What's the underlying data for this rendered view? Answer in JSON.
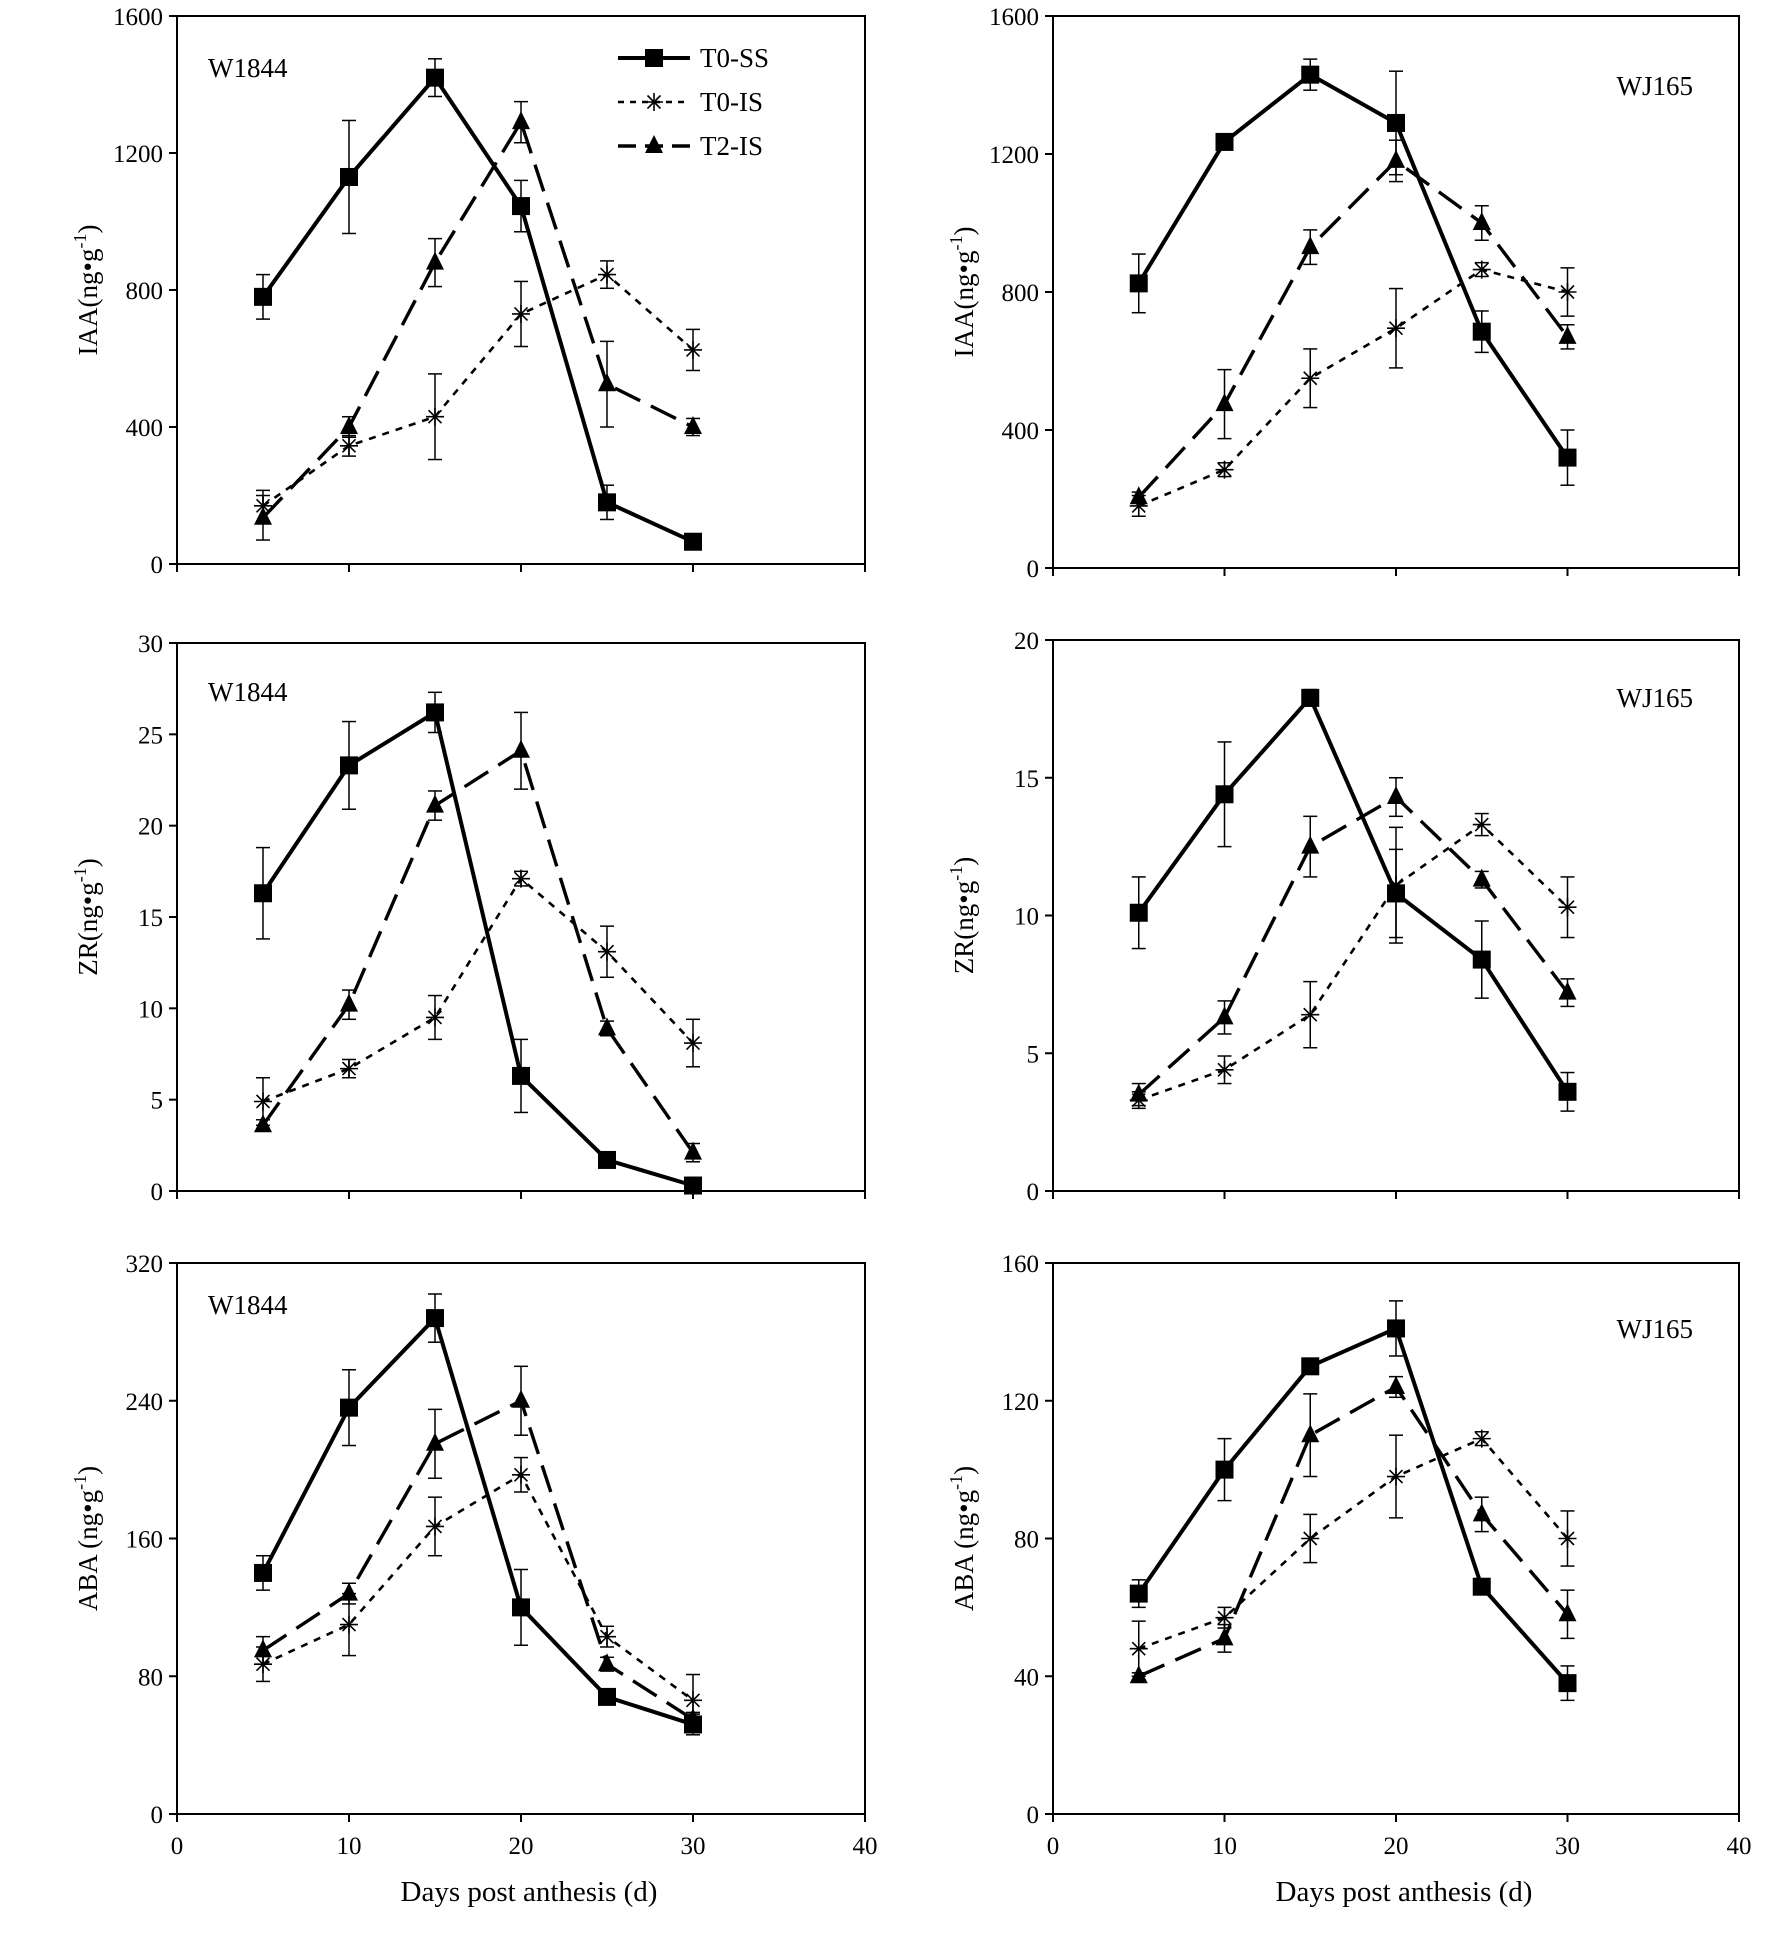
{
  "figure": {
    "x_label": "Days post anthesis (d)",
    "legend": [
      "T0-SS",
      "T0-IS",
      "T2-IS"
    ]
  },
  "chart_data": [
    {
      "type": "line",
      "title": "W1844",
      "ylabel": "IAA(ng•g⁻¹)",
      "ylabel_main": "IAA(ng•g",
      "ylabel_sup": "-1",
      "ylabel_end": ")",
      "xlabel": "Days post anthesis (d)",
      "xlim": [
        0,
        40
      ],
      "ylim": [
        0,
        1600
      ],
      "x_ticks": [
        "0",
        "10",
        "20",
        "30",
        "40"
      ],
      "y_ticks": [
        "0",
        "400",
        "800",
        "1200",
        "1600"
      ],
      "x": [
        5,
        10,
        15,
        20,
        25,
        30
      ],
      "series": [
        {
          "name": "T0-SS",
          "values": [
            780,
            1130,
            1420,
            1045,
            180,
            65
          ],
          "errors": [
            65,
            165,
            55,
            75,
            50,
            15
          ]
        },
        {
          "name": "T0-IS",
          "values": [
            170,
            345,
            430,
            730,
            845,
            625
          ],
          "errors": [
            45,
            30,
            125,
            95,
            40,
            60
          ]
        },
        {
          "name": "T2-IS",
          "values": [
            135,
            400,
            880,
            1290,
            525,
            400
          ],
          "errors": [
            65,
            30,
            70,
            60,
            125,
            25
          ]
        }
      ]
    },
    {
      "type": "line",
      "title": "WJ165",
      "ylabel": "IAA(ng•g⁻¹)",
      "ylabel_main": "IAA(ng•g",
      "ylabel_sup": "-1",
      "ylabel_end": ")",
      "xlabel": "Days post anthesis (d)",
      "xlim": [
        0,
        40
      ],
      "ylim": [
        0,
        1600
      ],
      "x_ticks": [
        "0",
        "10",
        "20",
        "30",
        "40"
      ],
      "y_ticks": [
        "0",
        "400",
        "800",
        "1200",
        "1600"
      ],
      "x": [
        5,
        10,
        15,
        20,
        25,
        30
      ],
      "series": [
        {
          "name": "T0-SS",
          "values": [
            825,
            1235,
            1430,
            1290,
            685,
            320
          ],
          "errors": [
            85,
            15,
            45,
            150,
            60,
            80
          ]
        },
        {
          "name": "T0-IS",
          "values": [
            180,
            285,
            550,
            695,
            865,
            800
          ],
          "errors": [
            30,
            20,
            85,
            115,
            20,
            70
          ]
        },
        {
          "name": "T2-IS",
          "values": [
            205,
            475,
            930,
            1180,
            1000,
            670
          ],
          "errors": [
            15,
            100,
            50,
            60,
            50,
            35
          ]
        }
      ]
    },
    {
      "type": "line",
      "title": "W1844",
      "ylabel": "ZR(ng•g⁻¹)",
      "ylabel_main": "ZR(ng•g",
      "ylabel_sup": "-1",
      "ylabel_end": ")",
      "xlabel": "Days post anthesis (d)",
      "xlim": [
        0,
        40
      ],
      "ylim": [
        0,
        30
      ],
      "x_ticks": [
        "0",
        "10",
        "20",
        "30",
        "40"
      ],
      "y_ticks": [
        "0",
        "5",
        "10",
        "15",
        "20",
        "25",
        "30"
      ],
      "x": [
        5,
        10,
        15,
        20,
        25,
        30
      ],
      "series": [
        {
          "name": "T0-SS",
          "values": [
            16.3,
            23.3,
            26.2,
            6.3,
            1.7,
            0.3
          ],
          "errors": [
            2.5,
            2.4,
            1.1,
            2.0,
            0.2,
            0.1
          ]
        },
        {
          "name": "T0-IS",
          "values": [
            4.9,
            6.7,
            9.5,
            17.1,
            13.1,
            8.1
          ],
          "errors": [
            1.3,
            0.5,
            1.2,
            0.4,
            1.4,
            1.3
          ]
        },
        {
          "name": "T2-IS",
          "values": [
            3.6,
            10.2,
            21.1,
            24.1,
            8.9,
            2.1
          ],
          "errors": [
            0.3,
            0.8,
            0.8,
            2.1,
            0.4,
            0.5
          ]
        }
      ]
    },
    {
      "type": "line",
      "title": "WJ165",
      "ylabel": "ZR(ng•g⁻¹)",
      "ylabel_main": "ZR(ng•g",
      "ylabel_sup": "-1",
      "ylabel_end": ")",
      "xlabel": "Days post anthesis (d)",
      "xlim": [
        0,
        40
      ],
      "ylim": [
        0,
        20
      ],
      "x_ticks": [
        "0",
        "10",
        "20",
        "30",
        "40"
      ],
      "y_ticks": [
        "0",
        "5",
        "10",
        "15",
        "20"
      ],
      "x": [
        5,
        10,
        15,
        20,
        25,
        30
      ],
      "series": [
        {
          "name": "T0-SS",
          "values": [
            10.1,
            14.4,
            17.9,
            10.8,
            8.4,
            3.6
          ],
          "errors": [
            1.3,
            1.9,
            0.3,
            1.6,
            1.4,
            0.7
          ]
        },
        {
          "name": "T0-IS",
          "values": [
            3.3,
            4.4,
            6.4,
            11.1,
            13.3,
            10.3
          ],
          "errors": [
            0.3,
            0.5,
            1.2,
            2.1,
            0.4,
            1.1
          ]
        },
        {
          "name": "T2-IS",
          "values": [
            3.5,
            6.3,
            12.5,
            14.3,
            11.3,
            7.2
          ],
          "errors": [
            0.4,
            0.6,
            1.1,
            0.7,
            0.3,
            0.5
          ]
        }
      ]
    },
    {
      "type": "line",
      "title": "W1844",
      "ylabel": "ABA (ng•g⁻¹)",
      "ylabel_main": "ABA (ng•g",
      "ylabel_sup": "-1",
      "ylabel_end": ")",
      "xlabel": "Days post anthesis (d)",
      "xlim": [
        0,
        40
      ],
      "ylim": [
        0,
        320
      ],
      "x_ticks": [
        "0",
        "10",
        "20",
        "30",
        "40"
      ],
      "y_ticks": [
        "0",
        "80",
        "160",
        "240",
        "320"
      ],
      "x": [
        5,
        10,
        15,
        20,
        25,
        30
      ],
      "series": [
        {
          "name": "T0-SS",
          "values": [
            140,
            236,
            288,
            120,
            68,
            52
          ],
          "errors": [
            10,
            22,
            14,
            22,
            4,
            6
          ]
        },
        {
          "name": "T0-IS",
          "values": [
            87,
            110,
            167,
            197,
            103,
            66
          ],
          "errors": [
            10,
            18,
            17,
            10,
            6,
            15
          ]
        },
        {
          "name": "T2-IS",
          "values": [
            95,
            128,
            215,
            240,
            87,
            55
          ],
          "errors": [
            8,
            6,
            20,
            20,
            4,
            4
          ]
        }
      ]
    },
    {
      "type": "line",
      "title": "WJ165",
      "ylabel": "ABA (ng•g⁻¹)",
      "ylabel_main": "ABA (ng•g",
      "ylabel_sup": "-1",
      "ylabel_end": ")",
      "xlabel": "Days post anthesis (d)",
      "xlim": [
        0,
        40
      ],
      "ylim": [
        0,
        160
      ],
      "x_ticks": [
        "0",
        "10",
        "20",
        "30",
        "40"
      ],
      "y_ticks": [
        "0",
        "40",
        "80",
        "120",
        "160"
      ],
      "x": [
        5,
        10,
        15,
        20,
        25,
        30
      ],
      "series": [
        {
          "name": "T0-SS",
          "values": [
            64,
            100,
            130,
            141,
            66,
            38
          ],
          "errors": [
            4,
            9,
            2,
            8,
            2,
            5
          ]
        },
        {
          "name": "T0-IS",
          "values": [
            48,
            57,
            80,
            98,
            109,
            80
          ],
          "errors": [
            8,
            3,
            7,
            12,
            2,
            8
          ]
        },
        {
          "name": "T2-IS",
          "values": [
            40,
            51,
            110,
            124,
            87,
            58
          ],
          "errors": [
            1,
            4,
            12,
            3,
            5,
            7
          ]
        }
      ]
    }
  ]
}
